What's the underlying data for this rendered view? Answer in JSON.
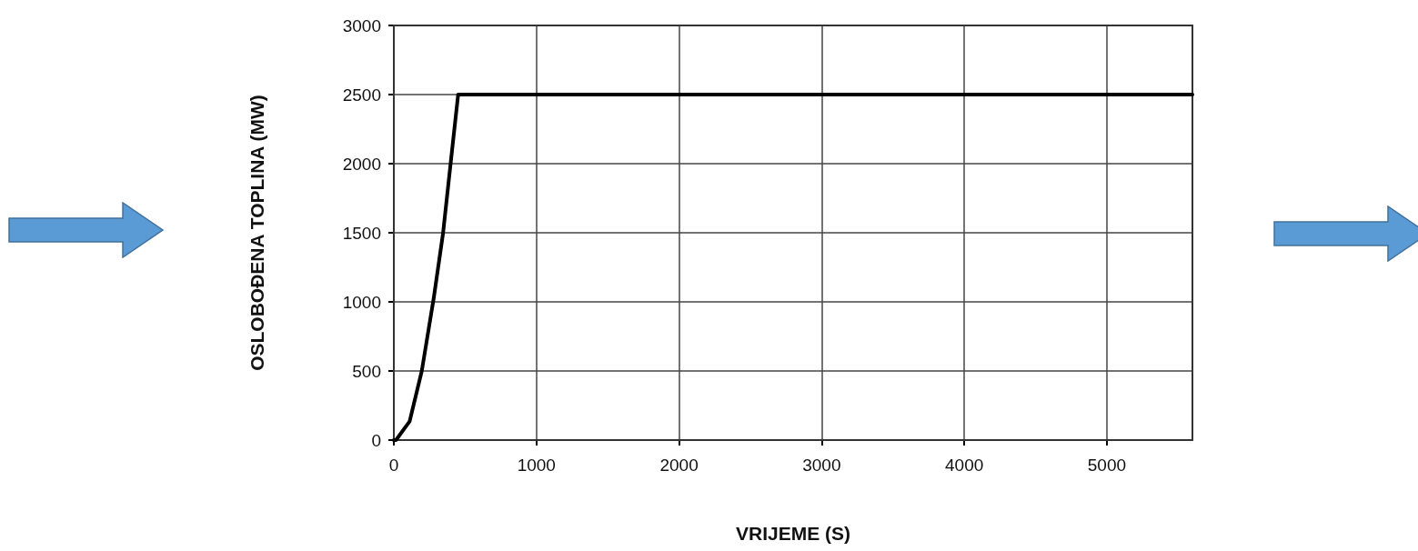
{
  "chart_data": {
    "type": "line",
    "xlabel": "VRIJEME (S)",
    "ylabel": "OSLOBOĐENA TOPLINA (MW)",
    "series": [
      {
        "color": "#000000",
        "x": [
          0,
          15,
          111,
          196,
          281,
          345,
          398,
          451,
          5600
        ],
        "values": [
          0,
          0,
          136,
          500,
          1035,
          1496,
          2000,
          2500,
          2500
        ]
      }
    ],
    "xlim": [
      0,
      5600
    ],
    "xticks": [
      0,
      1000,
      2000,
      3000,
      4000,
      5000
    ],
    "ylim": [
      0,
      3000
    ],
    "yticks": [
      0,
      500,
      1000,
      1500,
      2000,
      2500,
      3000
    ],
    "grid": true,
    "marker": "none",
    "line_style": "solid"
  }
}
